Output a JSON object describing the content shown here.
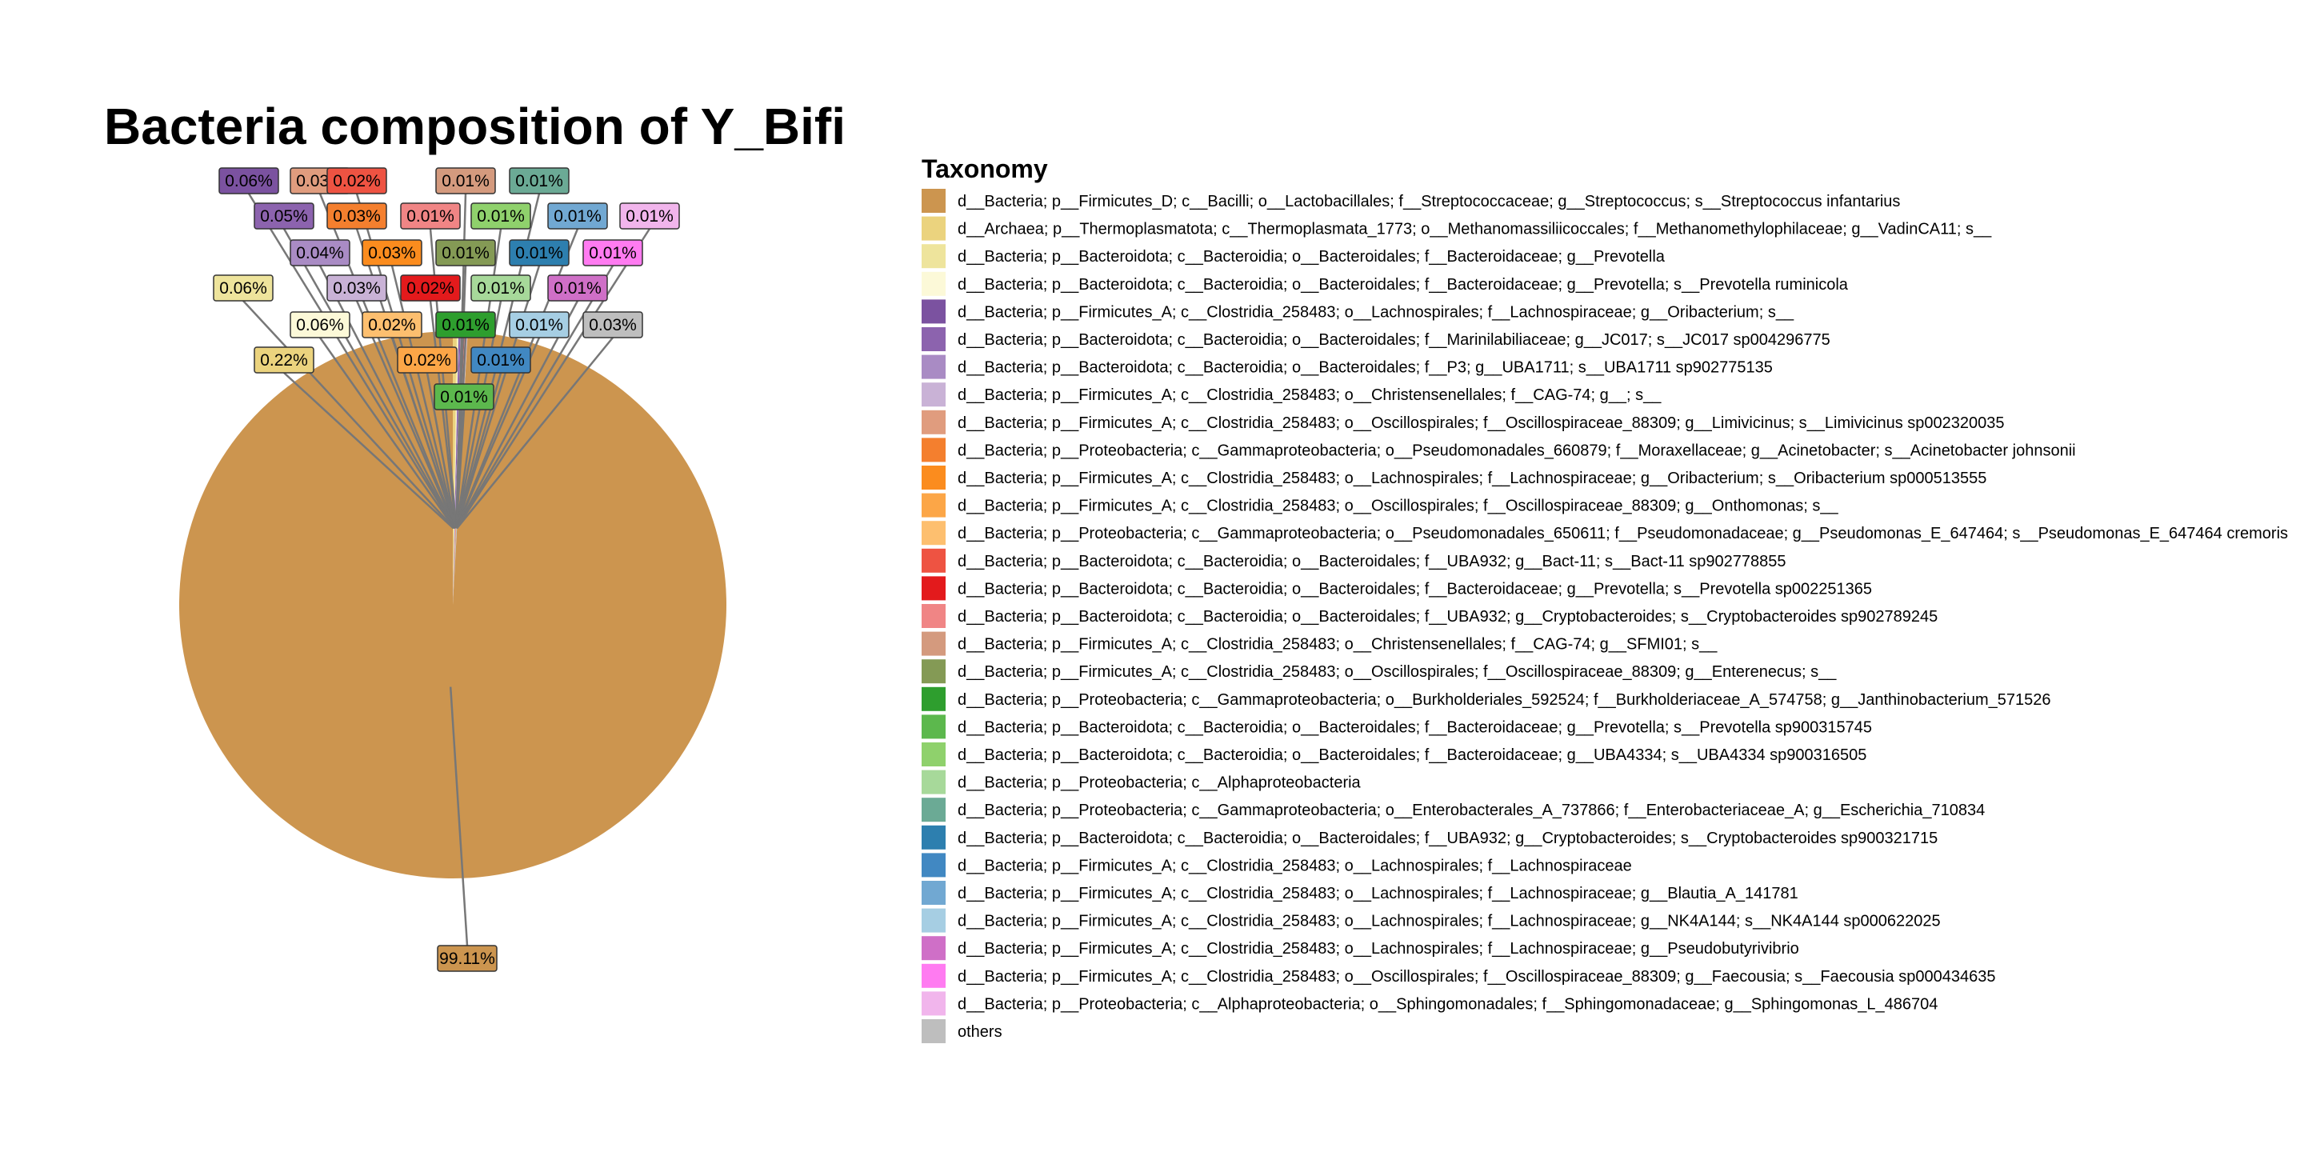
{
  "chart_data": {
    "type": "pie",
    "title": "Bacteria composition of Y_Bifi",
    "legend_title": "Taxonomy",
    "legend_placement": "right",
    "slices": [
      {
        "taxon": "d__Bacteria; p__Firmicutes_D; c__Bacilli; o__Lactobacillales; f__Streptococcaceae; g__Streptococcus; s__Streptococcus infantarius",
        "value": 99.11,
        "label": "99.11%",
        "color": "#CC954F"
      },
      {
        "taxon": "d__Archaea; p__Thermoplasmatota; c__Thermoplasmata_1773; o__Methanomassiliicoccales; f__Methanomethylophilaceae; g__VadinCA11; s__",
        "value": 0.22,
        "label": "0.22%",
        "color": "#EBD37E"
      },
      {
        "taxon": "d__Bacteria; p__Bacteroidota; c__Bacteroidia; o__Bacteroidales; f__Bacteroidaceae; g__Prevotella",
        "value": 0.06,
        "label": "0.06%",
        "color": "#EEE49C"
      },
      {
        "taxon": "d__Bacteria; p__Bacteroidota; c__Bacteroidia; o__Bacteroidales; f__Bacteroidaceae; g__Prevotella; s__Prevotella ruminicola",
        "value": 0.06,
        "label": "0.06%",
        "color": "#FCF9D8"
      },
      {
        "taxon": "d__Bacteria; p__Firmicutes_A; c__Clostridia_258483; o__Lachnospirales; f__Lachnospiraceae; g__Oribacterium; s__",
        "value": 0.06,
        "label": "0.06%",
        "color": "#7B52A0"
      },
      {
        "taxon": "d__Bacteria; p__Bacteroidota; c__Bacteroidia; o__Bacteroidales; f__Marinilabiliaceae; g__JC017; s__JC017 sp004296775",
        "value": 0.05,
        "label": "0.05%",
        "color": "#8C63AE"
      },
      {
        "taxon": "d__Bacteria; p__Bacteroidota; c__Bacteroidia; o__Bacteroidales; f__P3; g__UBA1711; s__UBA1711 sp902775135",
        "value": 0.04,
        "label": "0.04%",
        "color": "#A98BC4"
      },
      {
        "taxon": "d__Bacteria; p__Firmicutes_A; c__Clostridia_258483; o__Christensenellales; f__CAG-74; g__; s__",
        "value": 0.03,
        "label": "0.03%",
        "color": "#C9B2D6"
      },
      {
        "taxon": "d__Bacteria; p__Firmicutes_A; c__Clostridia_258483; o__Oscillospirales; f__Oscillospiraceae_88309; g__Limivicinus; s__Limivicinus sp002320035",
        "value": 0.03,
        "label": "0.03%",
        "color": "#E09C7E"
      },
      {
        "taxon": "d__Bacteria; p__Proteobacteria; c__Gammaproteobacteria; o__Pseudomonadales_660879; f__Moraxellaceae; g__Acinetobacter; s__Acinetobacter johnsonii",
        "value": 0.03,
        "label": "0.03%",
        "color": "#F47F2E"
      },
      {
        "taxon": "d__Bacteria; p__Firmicutes_A; c__Clostridia_258483; o__Lachnospirales; f__Lachnospiraceae; g__Oribacterium; s__Oribacterium sp000513555",
        "value": 0.03,
        "label": "0.03%",
        "color": "#FB8C1E"
      },
      {
        "taxon": "d__Bacteria; p__Firmicutes_A; c__Clostridia_258483; o__Oscillospirales; f__Oscillospiraceae_88309; g__Onthomonas; s__",
        "value": 0.02,
        "label": "0.02%",
        "color": "#FCA647"
      },
      {
        "taxon": "d__Bacteria; p__Proteobacteria; c__Gammaproteobacteria; o__Pseudomonadales_650611; f__Pseudomonadaceae; g__Pseudomonas_E_647464; s__Pseudomonas_E_647464 cremoris",
        "value": 0.02,
        "label": "0.02%",
        "color": "#FDBF6F"
      },
      {
        "taxon": "d__Bacteria; p__Bacteroidota; c__Bacteroidia; o__Bacteroidales; f__UBA932; g__Bact-11; s__Bact-11 sp902778855",
        "value": 0.02,
        "label": "0.02%",
        "color": "#EE5342"
      },
      {
        "taxon": "d__Bacteria; p__Bacteroidota; c__Bacteroidia; o__Bacteroidales; f__Bacteroidaceae; g__Prevotella; s__Prevotella sp002251365",
        "value": 0.02,
        "label": "0.02%",
        "color": "#E31A1C"
      },
      {
        "taxon": "d__Bacteria; p__Bacteroidota; c__Bacteroidia; o__Bacteroidales; f__UBA932; g__Cryptobacteroides; s__Cryptobacteroides sp902789245",
        "value": 0.01,
        "label": "0.01%",
        "color": "#F08585"
      },
      {
        "taxon": "d__Bacteria; p__Firmicutes_A; c__Clostridia_258483; o__Christensenellales; f__CAG-74; g__SFMI01; s__",
        "value": 0.01,
        "label": "0.01%",
        "color": "#D49A7E"
      },
      {
        "taxon": "d__Bacteria; p__Firmicutes_A; c__Clostridia_258483; o__Oscillospirales; f__Oscillospiraceae_88309; g__Enterenecus; s__",
        "value": 0.01,
        "label": "0.01%",
        "color": "#849A55"
      },
      {
        "taxon": "d__Bacteria; p__Proteobacteria; c__Gammaproteobacteria; o__Burkholderiales_592524; f__Burkholderiaceae_A_574758; g__Janthinobacterium_571526",
        "value": 0.01,
        "label": "0.01%",
        "color": "#2E9E2E"
      },
      {
        "taxon": "d__Bacteria; p__Bacteroidota; c__Bacteroidia; o__Bacteroidales; f__Bacteroidaceae; g__Prevotella; s__Prevotella sp900315745",
        "value": 0.01,
        "label": "0.01%",
        "color": "#5CB84D"
      },
      {
        "taxon": "d__Bacteria; p__Bacteroidota; c__Bacteroidia; o__Bacteroidales; f__Bacteroidaceae; g__UBA4334; s__UBA4334 sp900316505",
        "value": 0.01,
        "label": "0.01%",
        "color": "#8FD16C"
      },
      {
        "taxon": "d__Bacteria; p__Proteobacteria; c__Alphaproteobacteria",
        "value": 0.01,
        "label": "0.01%",
        "color": "#A7D99A"
      },
      {
        "taxon": "d__Bacteria; p__Proteobacteria; c__Gammaproteobacteria; o__Enterobacterales_A_737866; f__Enterobacteriaceae_A; g__Escherichia_710834",
        "value": 0.01,
        "label": "0.01%",
        "color": "#6BAA95"
      },
      {
        "taxon": "d__Bacteria; p__Bacteroidota; c__Bacteroidia; o__Bacteroidales; f__UBA932; g__Cryptobacteroides; s__Cryptobacteroides sp900321715",
        "value": 0.01,
        "label": "0.01%",
        "color": "#2D7FAF"
      },
      {
        "taxon": "d__Bacteria; p__Firmicutes_A; c__Clostridia_258483; o__Lachnospirales; f__Lachnospiraceae",
        "value": 0.01,
        "label": "0.01%",
        "color": "#4188C2"
      },
      {
        "taxon": "d__Bacteria; p__Firmicutes_A; c__Clostridia_258483; o__Lachnospirales; f__Lachnospiraceae; g__Blautia_A_141781",
        "value": 0.01,
        "label": "0.01%",
        "color": "#71A8D2"
      },
      {
        "taxon": "d__Bacteria; p__Firmicutes_A; c__Clostridia_258483; o__Lachnospirales; f__Lachnospiraceae; g__NK4A144; s__NK4A144 sp000622025",
        "value": 0.01,
        "label": "0.01%",
        "color": "#A6CEE3"
      },
      {
        "taxon": "d__Bacteria; p__Firmicutes_A; c__Clostridia_258483; o__Lachnospirales; f__Lachnospiraceae; g__Pseudobutyrivibrio",
        "value": 0.01,
        "label": "0.01%",
        "color": "#CF6FC7"
      },
      {
        "taxon": "d__Bacteria; p__Firmicutes_A; c__Clostridia_258483; o__Oscillospirales; f__Oscillospiraceae_88309; g__Faecousia; s__Faecousia sp000434635",
        "value": 0.01,
        "label": "0.01%",
        "color": "#FF7BF1"
      },
      {
        "taxon": "d__Bacteria; p__Proteobacteria; c__Alphaproteobacteria; o__Sphingomonadales; f__Sphingomonadaceae; g__Sphingomonas_L_486704",
        "value": 0.01,
        "label": "0.01%",
        "color": "#F1B5EC"
      },
      {
        "taxon": "others",
        "value": 0.03,
        "label": "0.03%",
        "color": "#BEBEBE"
      }
    ]
  }
}
